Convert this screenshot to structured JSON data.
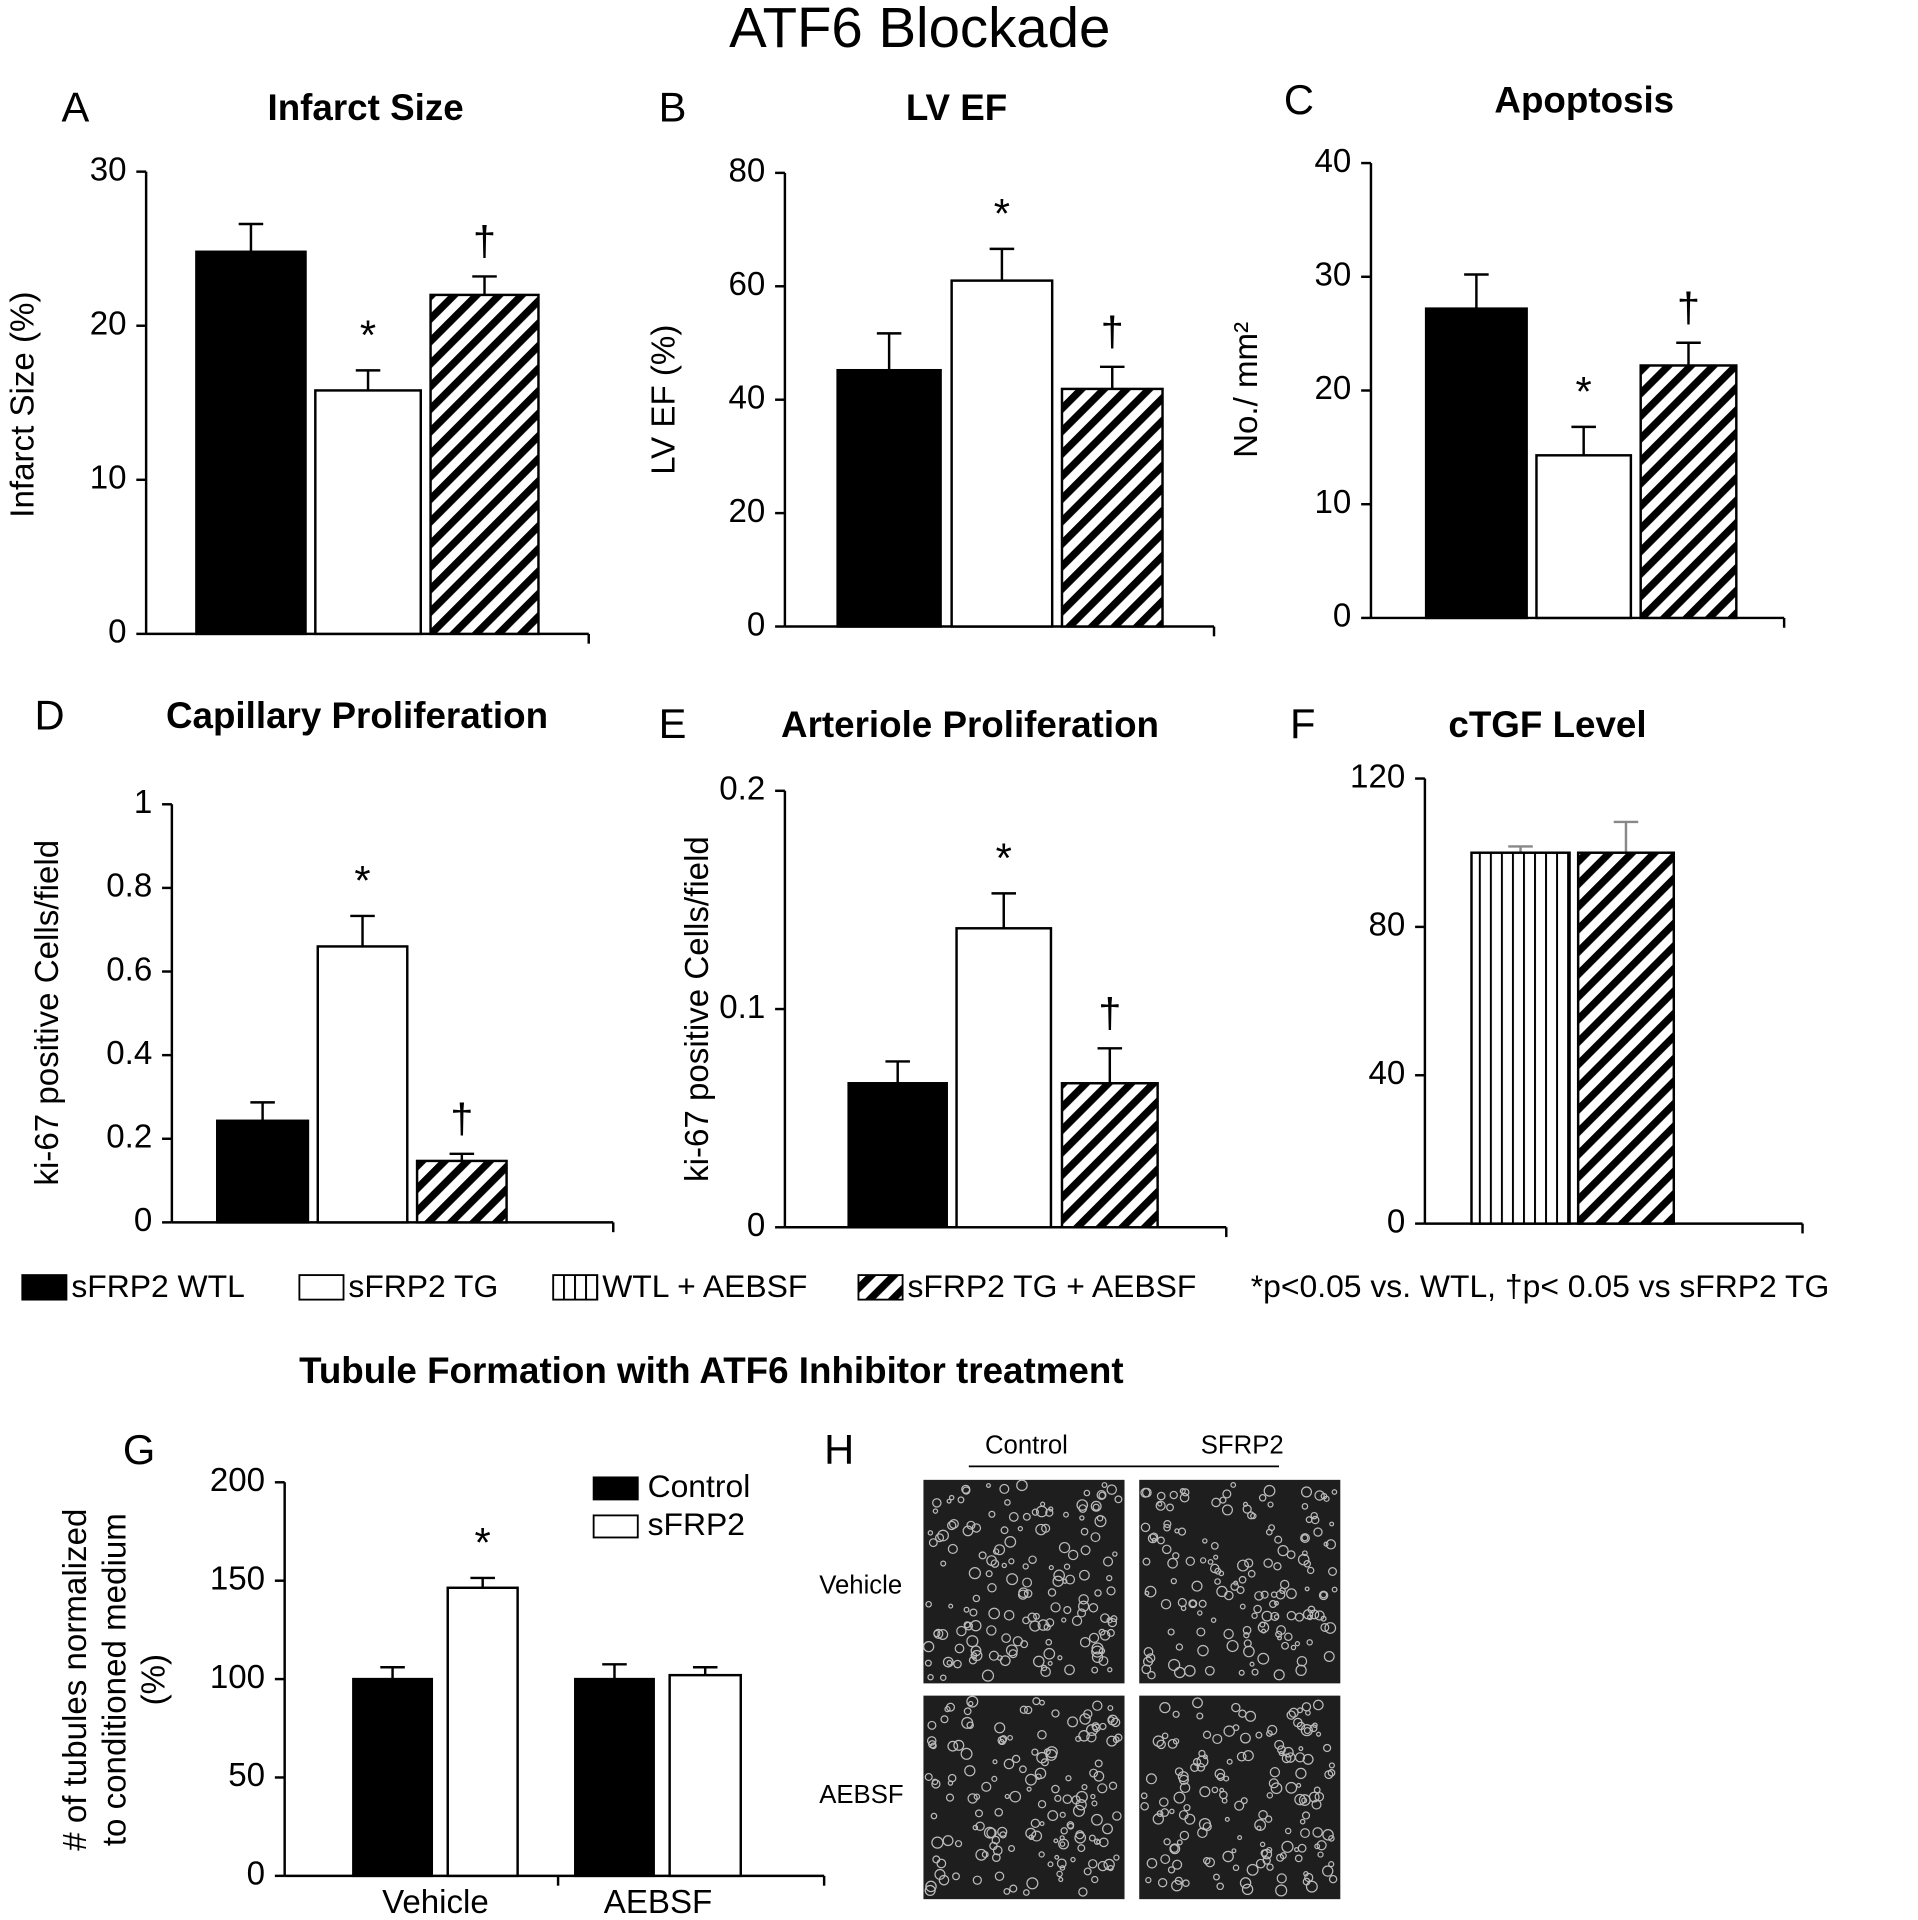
{
  "title": "ATF6 Blockade",
  "legend": {
    "entries": [
      {
        "name": "sFRP2 WTL",
        "pattern": "black"
      },
      {
        "name": "sFRP2 TG",
        "pattern": "white"
      },
      {
        "name": "WTL + AEBSF",
        "pattern": "vertical"
      },
      {
        "name": "sFRP2 TG + AEBSF",
        "pattern": "diagonal"
      }
    ],
    "note": "*p<0.05 vs. WTL, †p< 0.05 vs sFRP2 TG"
  },
  "section_title": "Tubule Formation with ATF6 Inhibitor treatment",
  "panel_h": {
    "letter": "H",
    "columns": [
      "Control",
      "SFRP2"
    ],
    "rows": [
      "Vehicle",
      "AEBSF"
    ]
  },
  "chart_data": [
    {
      "type": "bar",
      "panel": "A",
      "title": "Infarct Size",
      "ylabel": "Infarct Size (%)",
      "ylim": [
        0,
        30
      ],
      "yticks": [
        0,
        10,
        20,
        30
      ],
      "values": [
        24.8,
        15.8,
        22.0
      ],
      "errors": [
        1.8,
        1.3,
        1.2
      ],
      "patterns": [
        "black",
        "white",
        "diagonal"
      ],
      "annotations": [
        null,
        "*",
        "†"
      ]
    },
    {
      "type": "bar",
      "panel": "B",
      "title": "LV EF",
      "ylabel": "LV EF (%)",
      "ylim": [
        0,
        80
      ],
      "yticks": [
        0,
        20,
        40,
        60,
        80
      ],
      "values": [
        45.2,
        61.0,
        41.9
      ],
      "errors": [
        6.5,
        5.6,
        3.9
      ],
      "patterns": [
        "black",
        "white",
        "diagonal"
      ],
      "annotations": [
        null,
        "*",
        "†"
      ]
    },
    {
      "type": "bar",
      "panel": "C",
      "title": "Apoptosis",
      "ylabel": "No./ mm²",
      "ylim": [
        0,
        40
      ],
      "yticks": [
        0,
        10,
        20,
        30,
        40
      ],
      "values": [
        27.2,
        14.3,
        22.2
      ],
      "errors": [
        3.0,
        2.5,
        2.0
      ],
      "patterns": [
        "black",
        "white",
        "diagonal"
      ],
      "annotations": [
        null,
        "*",
        "†"
      ]
    },
    {
      "type": "bar",
      "panel": "D",
      "title": "Capillary Proliferation",
      "ylabel": "ki-67 positive Cells/field",
      "ylim": [
        0,
        1
      ],
      "yticks": [
        0,
        0.2,
        0.4,
        0.6,
        0.8,
        1
      ],
      "values": [
        0.243,
        0.66,
        0.147
      ],
      "errors": [
        0.044,
        0.073,
        0.017
      ],
      "patterns": [
        "black",
        "white",
        "diagonal"
      ],
      "annotations": [
        null,
        "*",
        "†"
      ]
    },
    {
      "type": "bar",
      "panel": "E",
      "title": "Arteriole Proliferation",
      "ylabel": "ki-67 positive Cells/field",
      "ylim": [
        0,
        0.2
      ],
      "yticks": [
        0,
        0.1,
        0.2
      ],
      "values": [
        0.066,
        0.137,
        0.066
      ],
      "errors": [
        0.01,
        0.016,
        0.016
      ],
      "patterns": [
        "black",
        "white",
        "diagonal"
      ],
      "annotations": [
        null,
        "*",
        "†"
      ]
    },
    {
      "type": "bar",
      "panel": "F",
      "title": "cTGF Level",
      "ylim": [
        0,
        120
      ],
      "yticks": [
        0,
        40,
        80,
        120
      ],
      "error_color": "#888888",
      "values": [
        100,
        100
      ],
      "errors": [
        1.7,
        8.3
      ],
      "patterns": [
        "vertical",
        "diagonal"
      ]
    },
    {
      "type": "grouped_bar",
      "panel": "G",
      "ylabel": [
        "# of tubules normalized",
        "to conditioned medium",
        "(%)"
      ],
      "ylim": [
        0,
        200
      ],
      "yticks": [
        0,
        50,
        100,
        150,
        200
      ],
      "categories": [
        "Vehicle",
        "AEBSF"
      ],
      "series": [
        {
          "name": "Control",
          "pattern": "black",
          "values": [
            100,
            100
          ],
          "errors": [
            6,
            7.5
          ]
        },
        {
          "name": "sFRP2",
          "pattern": "white",
          "values": [
            146.4,
            102
          ],
          "errors": [
            5,
            4
          ],
          "annotations": [
            "*",
            null
          ]
        }
      ]
    }
  ]
}
